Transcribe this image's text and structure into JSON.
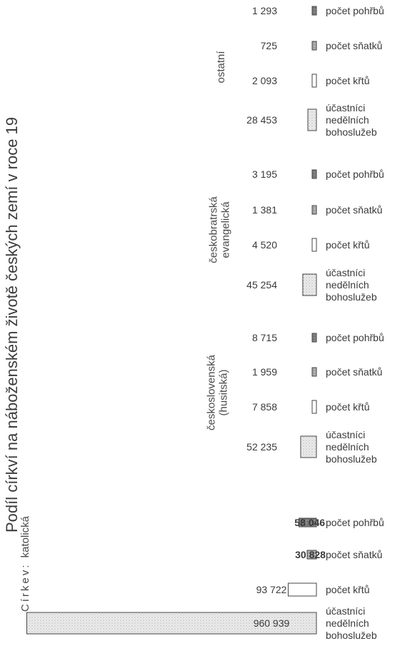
{
  "chart_data": {
    "type": "bar",
    "orientation": "horizontal",
    "title": "Podíl církví na náboženském životě českých zemí v roce 19",
    "church_prefix": "Církev:",
    "categories": [
      "počet pohřbů",
      "počet sňatků",
      "počet křtů",
      "účastníci nedělních bohoslužeb"
    ],
    "series": [
      {
        "name": "katolická",
        "values": [
          58046,
          30828,
          93722,
          960939
        ]
      },
      {
        "name": "československá (husitská)",
        "values": [
          8715,
          1959,
          7858,
          52235
        ]
      },
      {
        "name": "českobratrská evangelická",
        "values": [
          3195,
          1381,
          4520,
          45254
        ]
      },
      {
        "name": "ostatní",
        "values": [
          1293,
          725,
          2093,
          28453
        ]
      }
    ],
    "value_labels": [
      [
        "58 046",
        "30 828",
        "93 722",
        "960 939"
      ],
      [
        "8 715",
        "1 959",
        "7 858",
        "52 235"
      ],
      [
        "3 195",
        "1 381",
        "4 520",
        "45 254"
      ],
      [
        "1 293",
        "725",
        "2 093",
        "28 453"
      ]
    ],
    "category_fill": {
      "počet pohřbů": "#7a7a7a",
      "počet sňatků": "#a3a3a3",
      "počet křtů": "#ffffff",
      "účastníci nedělních bohoslužeb": "#e2e2e2"
    },
    "xlabel": "",
    "ylabel": "",
    "grid": false,
    "legend": "none"
  }
}
